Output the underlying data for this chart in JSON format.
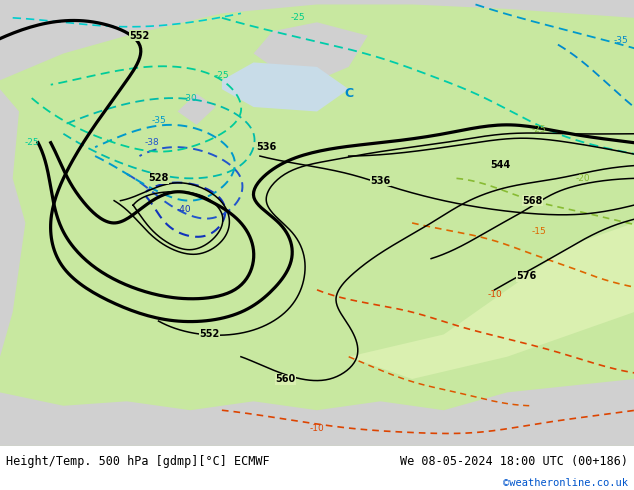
{
  "title_left": "Height/Temp. 500 hPa [gdmp][°C] ECMWF",
  "title_right": "We 08-05-2024 18:00 UTC (00+186)",
  "credit": "©weatheronline.co.uk",
  "land_color": "#c8e8a0",
  "land_color_light": "#daf0b0",
  "grey_color": "#d0d0d0",
  "sea_color": "#c8dce8",
  "fig_width": 6.34,
  "fig_height": 4.9,
  "dpi": 100
}
